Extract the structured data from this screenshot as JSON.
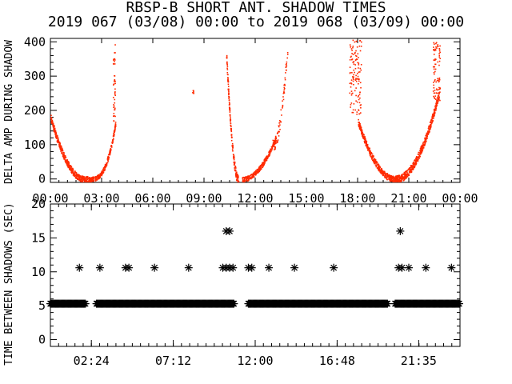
{
  "title_line1": "RBSP-B SHORT ANT. SHADOW TIMES",
  "title_line2": "2019 067 (03/08) 00:00 to 2019 068 (03/09) 00:00",
  "colors": {
    "points": "#ff2a00",
    "axes": "#000000",
    "stars": "#000000"
  },
  "chart_data": [
    {
      "type": "scatter",
      "ylabel": "DELTA AMP DURING SHADOW",
      "xlim": [
        "00:00",
        "24:00"
      ],
      "ylim": [
        -10,
        410
      ],
      "x_tick_labels": [
        "00:00",
        "03:00",
        "06:00",
        "09:00",
        "12:00",
        "15:00",
        "18:00",
        "21:00",
        "00:00"
      ],
      "y_tick_labels": [
        "0",
        "100",
        "200",
        "300",
        "400"
      ],
      "point_color": "#ff2a00",
      "segments_description_units": "x in hours of day, y in amplitude",
      "arcs": [
        {
          "x_start": 0.0,
          "x_end": 2.9,
          "y_start": 180,
          "y_min": 0,
          "y_min_at": 2.0
        },
        {
          "x_start": 2.3,
          "x_end": 3.8,
          "y_end": 170
        },
        {
          "x_start": 10.3,
          "x_end": 11.0,
          "y_start": 350,
          "y_end": 10
        },
        {
          "x_start": 11.2,
          "x_end": 13.0,
          "y_start": 0,
          "y_end": 120
        },
        {
          "x_start": 13.0,
          "x_end": 13.9,
          "y_start": 100,
          "y_end": 380
        },
        {
          "x_start": 17.6,
          "x_end": 20.2,
          "y_start": 380,
          "y_min": 0,
          "y_min_at": 20.0
        },
        {
          "x_start": 20.2,
          "x_end": 22.8,
          "y_start": 0,
          "y_end": 310
        }
      ]
    },
    {
      "type": "scatter",
      "ylabel": "TIME BETWEEN SHADOWS (SEC)",
      "xlim": [
        "00:00",
        "24:00"
      ],
      "ylim": [
        -1,
        20
      ],
      "x_tick_labels": [
        "02:24",
        "07:12",
        "12:00",
        "16:48",
        "21:35"
      ],
      "y_tick_labels": [
        "0",
        "5",
        "10",
        "15",
        "20"
      ],
      "marker": "*",
      "baseline_value": 5.3,
      "baseline_ranges": [
        [
          0.0,
          2.1
        ],
        [
          2.7,
          10.8
        ],
        [
          11.6,
          19.8
        ],
        [
          20.2,
          24.0
        ]
      ],
      "points": [
        {
          "x": 1.7,
          "y": 10.6
        },
        {
          "x": 2.9,
          "y": 10.6
        },
        {
          "x": 4.4,
          "y": 10.6
        },
        {
          "x": 4.6,
          "y": 10.6
        },
        {
          "x": 6.1,
          "y": 10.6
        },
        {
          "x": 8.1,
          "y": 10.6
        },
        {
          "x": 10.1,
          "y": 10.6
        },
        {
          "x": 10.3,
          "y": 10.6
        },
        {
          "x": 10.5,
          "y": 10.6
        },
        {
          "x": 10.7,
          "y": 10.6
        },
        {
          "x": 10.3,
          "y": 16.0
        },
        {
          "x": 10.5,
          "y": 16.0
        },
        {
          "x": 11.6,
          "y": 10.6
        },
        {
          "x": 11.8,
          "y": 10.6
        },
        {
          "x": 12.8,
          "y": 10.6
        },
        {
          "x": 14.3,
          "y": 10.6
        },
        {
          "x": 16.6,
          "y": 10.6
        },
        {
          "x": 20.4,
          "y": 10.6
        },
        {
          "x": 20.6,
          "y": 10.6
        },
        {
          "x": 20.5,
          "y": 16.0
        },
        {
          "x": 21.0,
          "y": 10.6
        },
        {
          "x": 22.0,
          "y": 10.6
        },
        {
          "x": 23.5,
          "y": 10.6
        }
      ]
    }
  ]
}
